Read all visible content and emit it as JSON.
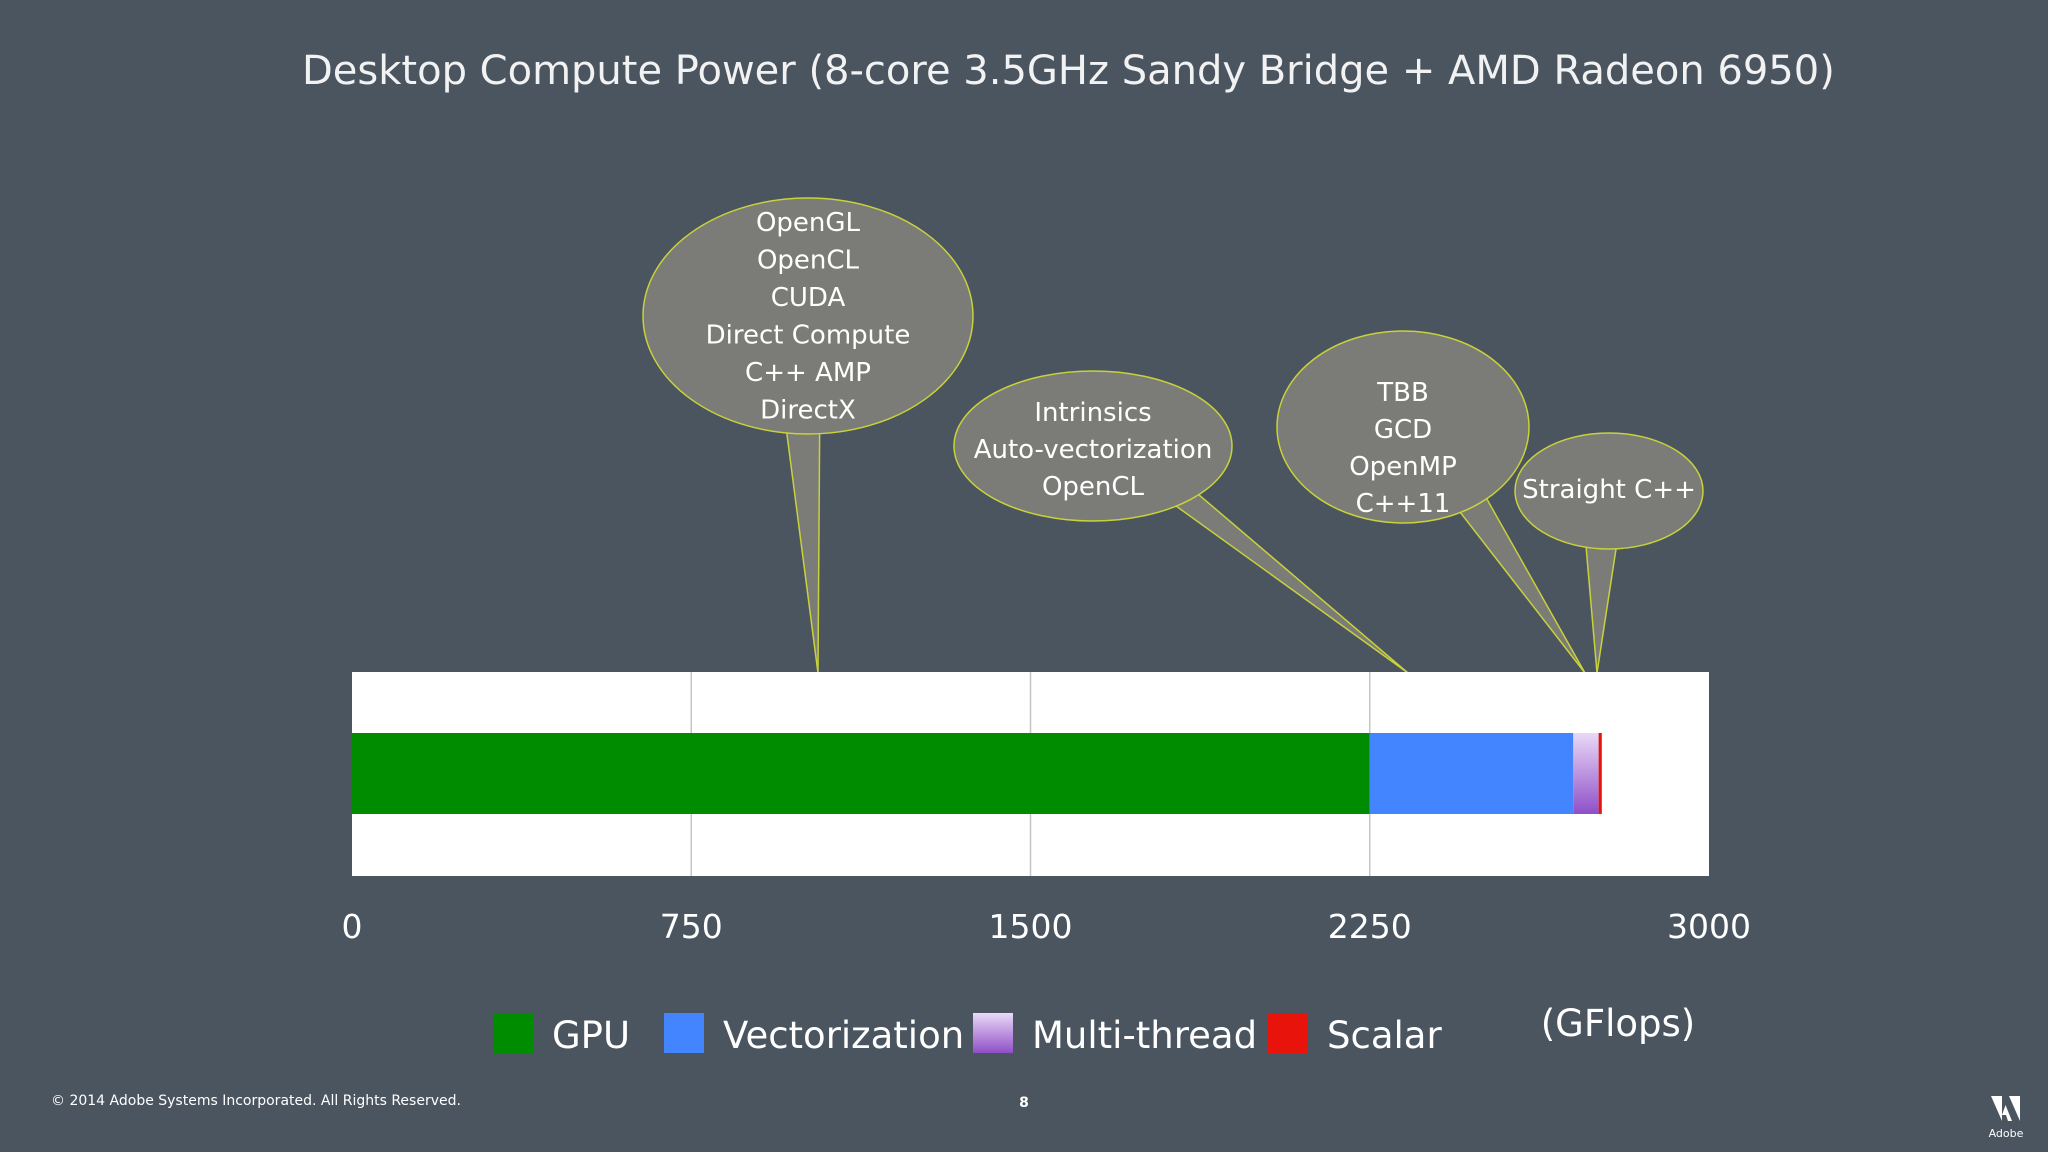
{
  "title": "Desktop Compute Power (8-core 3.5GHz Sandy Bridge + AMD Radeon 6950)",
  "footer": {
    "copyright": "© 2014 Adobe Systems Incorporated.  All Rights Reserved.",
    "page_number": "8",
    "logo_text": "Adobe"
  },
  "colors": {
    "background": "#4a5560",
    "bubble_fill": "#7b7b78",
    "bubble_stroke": "#c8d23a"
  },
  "callouts": [
    {
      "name": "gpu",
      "lines": [
        "OpenGL",
        "OpenCL",
        "CUDA",
        "Direct Compute",
        "C++ AMP",
        "DirectX"
      ]
    },
    {
      "name": "vectorization",
      "lines": [
        "Intrinsics",
        "Auto-vectorization",
        "OpenCL"
      ]
    },
    {
      "name": "multi-thread",
      "lines": [
        "TBB",
        "GCD",
        "OpenMP",
        "C++11"
      ]
    },
    {
      "name": "scalar",
      "lines": [
        "Straight C++"
      ]
    }
  ],
  "chart_data": {
    "type": "bar",
    "orientation": "horizontal",
    "stacked": true,
    "xlim": [
      0,
      3000
    ],
    "xticks": [
      "0",
      "750",
      "1500",
      "2250",
      "3000"
    ],
    "unit_label": "(GFlops)",
    "grid": true,
    "legend_position": "bottom",
    "series": [
      {
        "name": "GPU",
        "value": 2250,
        "color": "#008c00"
      },
      {
        "name": "Vectorization",
        "value": 450,
        "color": "#4285ff"
      },
      {
        "name": "Multi-thread",
        "value": 56,
        "color": "#b383e0"
      },
      {
        "name": "Scalar",
        "value": 7,
        "color": "#e8140c"
      }
    ]
  }
}
